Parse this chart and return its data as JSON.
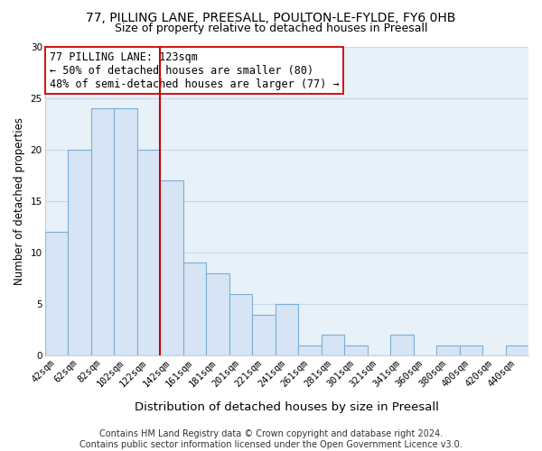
{
  "title": "77, PILLING LANE, PREESALL, POULTON-LE-FYLDE, FY6 0HB",
  "subtitle": "Size of property relative to detached houses in Preesall",
  "xlabel": "Distribution of detached houses by size in Preesall",
  "ylabel": "Number of detached properties",
  "bar_labels": [
    "42sqm",
    "62sqm",
    "82sqm",
    "102sqm",
    "122sqm",
    "142sqm",
    "161sqm",
    "181sqm",
    "201sqm",
    "221sqm",
    "241sqm",
    "261sqm",
    "281sqm",
    "301sqm",
    "321sqm",
    "341sqm",
    "360sqm",
    "380sqm",
    "400sqm",
    "420sqm",
    "440sqm"
  ],
  "bar_values": [
    12,
    20,
    24,
    24,
    20,
    17,
    9,
    8,
    6,
    4,
    5,
    1,
    2,
    1,
    0,
    2,
    0,
    1,
    1,
    0,
    1
  ],
  "bar_color": "#d6e4f5",
  "bar_edge_color": "#7bafd4",
  "vline_color": "#cc0000",
  "annotation_text": "77 PILLING LANE: 123sqm\n← 50% of detached houses are smaller (80)\n48% of semi-detached houses are larger (77) →",
  "annotation_box_color": "#ffffff",
  "annotation_box_edge": "#cc0000",
  "ylim": [
    0,
    30
  ],
  "yticks": [
    0,
    5,
    10,
    15,
    20,
    25,
    30
  ],
  "plot_bg_color": "#e8f0f8",
  "fig_bg_color": "#ffffff",
  "grid_color": "#c8d8e8",
  "title_fontsize": 10,
  "subtitle_fontsize": 9,
  "xlabel_fontsize": 9.5,
  "ylabel_fontsize": 8.5,
  "tick_fontsize": 7.5,
  "annotation_fontsize": 8.5,
  "footer_fontsize": 7,
  "footer_text": "Contains HM Land Registry data © Crown copyright and database right 2024.\nContains public sector information licensed under the Open Government Licence v3.0."
}
